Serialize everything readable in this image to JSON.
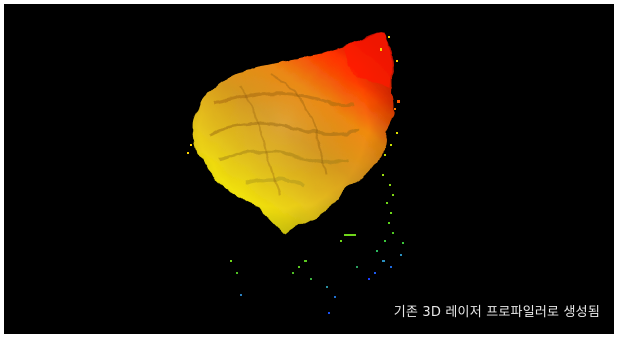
{
  "image": {
    "caption": "기존 3D 레이저 프로파일러로 생성됨",
    "background_color": "#000000",
    "palette": {
      "high": "#ff1a00",
      "mid_high": "#ff8a00",
      "mid": "#f4b428",
      "low": "#f3f000",
      "lower": "#6fd61a",
      "lowest": "#1a3cff"
    }
  }
}
